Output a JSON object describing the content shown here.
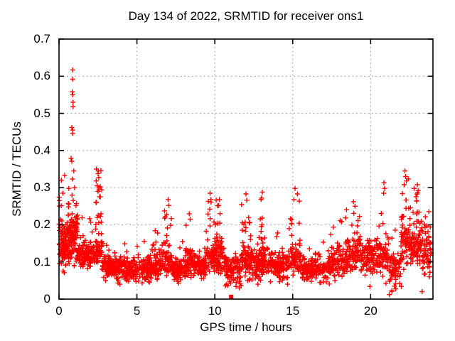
{
  "figure": {
    "title": "Day 134 of 2022, SRMTID for receiver ons1",
    "xlabel": "GPS time / hours",
    "ylabel": "SRMTID / TECUs"
  },
  "chart_data": {
    "type": "scatter",
    "title": "Day 134 of 2022, SRMTID for receiver ons1",
    "xlabel": "GPS time / hours",
    "ylabel": "SRMTID / TECUs",
    "xlim": [
      0,
      24
    ],
    "ylim": [
      0,
      0.7
    ],
    "xticks": [
      0,
      5,
      10,
      15,
      20
    ],
    "yticks": [
      0,
      0.1,
      0.2,
      0.3,
      0.4,
      0.5,
      0.6,
      0.7
    ],
    "grid": true,
    "grid_style": "dashed",
    "legend": "none",
    "marker": "plus",
    "marker_color": "#ff0000",
    "grid_color": "#a0a0a0",
    "border_color": "#000000",
    "approx_point_count": 2600,
    "notable_points": [
      [
        0.87,
        0.617
      ],
      [
        0.87,
        0.592
      ],
      [
        0.85,
        0.558
      ],
      [
        0.88,
        0.55
      ],
      [
        0.9,
        0.53
      ],
      [
        0.9,
        0.518
      ],
      [
        0.82,
        0.462
      ],
      [
        0.87,
        0.455
      ],
      [
        0.87,
        0.446
      ],
      [
        0.77,
        0.379
      ],
      [
        0.82,
        0.371
      ],
      [
        0.95,
        0.345
      ],
      [
        0.36,
        0.333
      ],
      [
        0.86,
        0.323
      ],
      [
        1.0,
        0.3
      ],
      [
        0.15,
        0.32
      ],
      [
        0.25,
        0.285
      ],
      [
        2.4,
        0.35
      ],
      [
        2.5,
        0.338
      ],
      [
        2.55,
        0.327
      ],
      [
        2.45,
        0.305
      ],
      [
        2.5,
        0.29
      ],
      [
        7.0,
        0.268
      ],
      [
        7.05,
        0.252
      ],
      [
        9.7,
        0.285
      ],
      [
        9.75,
        0.268
      ],
      [
        10.3,
        0.268
      ],
      [
        10.25,
        0.252
      ],
      [
        12.0,
        0.283
      ],
      [
        12.05,
        0.266
      ],
      [
        13.05,
        0.288
      ],
      [
        13.0,
        0.272
      ],
      [
        15.15,
        0.298
      ],
      [
        15.3,
        0.283
      ],
      [
        18.9,
        0.262
      ],
      [
        19.0,
        0.25
      ],
      [
        20.85,
        0.313
      ],
      [
        20.9,
        0.298
      ],
      [
        22.2,
        0.345
      ],
      [
        22.25,
        0.33
      ],
      [
        22.3,
        0.318
      ],
      [
        22.15,
        0.308
      ],
      [
        23.0,
        0.308
      ],
      [
        23.05,
        0.292
      ],
      [
        19.95,
        0.034
      ],
      [
        21.2,
        0.012
      ],
      [
        21.97,
        0.034
      ],
      [
        23.3,
        0.02
      ]
    ],
    "square_point": {
      "x": 11.05,
      "y": 0.006,
      "marker": "filled-square",
      "color": "#ff0000"
    },
    "cluster_distribution_comment": "dense +-marker cloud described as clusters: [xStart,xEnd,count,yMin,yMode,yMax,upperTailFraction]",
    "clusters": [
      [
        0.0,
        0.6,
        110,
        0.07,
        0.14,
        0.28,
        0.22
      ],
      [
        0.6,
        1.2,
        120,
        0.08,
        0.16,
        0.3,
        0.28
      ],
      [
        1.2,
        2.3,
        130,
        0.08,
        0.12,
        0.22,
        0.15
      ],
      [
        2.35,
        2.75,
        60,
        0.09,
        0.13,
        0.35,
        0.45
      ],
      [
        2.75,
        3.6,
        90,
        0.05,
        0.09,
        0.17,
        0.1
      ],
      [
        3.6,
        5.2,
        160,
        0.04,
        0.08,
        0.15,
        0.08
      ],
      [
        5.2,
        6.1,
        100,
        0.04,
        0.08,
        0.16,
        0.1
      ],
      [
        6.1,
        6.6,
        55,
        0.05,
        0.09,
        0.21,
        0.22
      ],
      [
        6.6,
        7.25,
        65,
        0.05,
        0.1,
        0.26,
        0.25
      ],
      [
        7.25,
        8.1,
        100,
        0.04,
        0.08,
        0.16,
        0.08
      ],
      [
        8.1,
        8.7,
        75,
        0.05,
        0.1,
        0.23,
        0.18
      ],
      [
        8.7,
        9.45,
        85,
        0.05,
        0.09,
        0.18,
        0.1
      ],
      [
        9.45,
        10.0,
        65,
        0.06,
        0.11,
        0.28,
        0.27
      ],
      [
        10.0,
        10.6,
        75,
        0.06,
        0.12,
        0.27,
        0.27
      ],
      [
        10.6,
        11.7,
        105,
        0.03,
        0.08,
        0.15,
        0.08
      ],
      [
        11.7,
        12.25,
        70,
        0.05,
        0.1,
        0.27,
        0.27
      ],
      [
        12.25,
        12.9,
        75,
        0.04,
        0.09,
        0.2,
        0.12
      ],
      [
        12.9,
        13.35,
        60,
        0.05,
        0.1,
        0.28,
        0.3
      ],
      [
        13.35,
        14.85,
        130,
        0.04,
        0.09,
        0.19,
        0.1
      ],
      [
        14.85,
        15.55,
        70,
        0.05,
        0.1,
        0.3,
        0.27
      ],
      [
        15.55,
        17.4,
        170,
        0.04,
        0.08,
        0.16,
        0.08
      ],
      [
        17.4,
        18.4,
        95,
        0.05,
        0.1,
        0.22,
        0.15
      ],
      [
        18.4,
        19.35,
        95,
        0.06,
        0.12,
        0.26,
        0.22
      ],
      [
        19.35,
        20.3,
        85,
        0.05,
        0.11,
        0.25,
        0.18
      ],
      [
        20.3,
        21.2,
        85,
        0.04,
        0.11,
        0.3,
        0.22
      ],
      [
        21.2,
        21.95,
        65,
        0.02,
        0.08,
        0.2,
        0.1
      ],
      [
        21.95,
        22.6,
        85,
        0.08,
        0.15,
        0.34,
        0.28
      ],
      [
        22.6,
        23.3,
        85,
        0.07,
        0.14,
        0.3,
        0.22
      ],
      [
        23.3,
        23.9,
        65,
        0.06,
        0.12,
        0.26,
        0.18
      ]
    ],
    "seed": 7
  }
}
